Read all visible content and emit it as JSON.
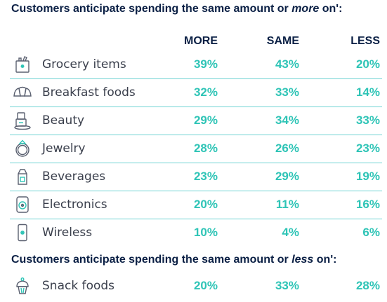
{
  "headings": {
    "more_prefix": "Customers anticipate spending the same amount or ",
    "more_emph": "more",
    "more_suffix": " on':",
    "less_prefix": "Customers anticipate spending the same amount or ",
    "less_emph": "less",
    "less_suffix": " on':"
  },
  "colors": {
    "value": "#2ec4b6",
    "divider": "#6fd3d3",
    "heading": "#0a1f44"
  },
  "chart_data": {
    "type": "table",
    "columns": [
      "MORE",
      "SAME",
      "LESS"
    ],
    "rows": [
      {
        "label": "Grocery items",
        "icon": "grocery-bag-icon",
        "more": "39%",
        "same": "43%",
        "less": "20%"
      },
      {
        "label": "Breakfast foods",
        "icon": "croissant-icon",
        "more": "32%",
        "same": "33%",
        "less": "14%"
      },
      {
        "label": "Beauty",
        "icon": "cosmetics-icon",
        "more": "29%",
        "same": "34%",
        "less": "33%"
      },
      {
        "label": "Jewelry",
        "icon": "ring-icon",
        "more": "28%",
        "same": "26%",
        "less": "23%"
      },
      {
        "label": "Beverages",
        "icon": "milk-carton-icon",
        "more": "23%",
        "same": "29%",
        "less": "19%"
      },
      {
        "label": "Electronics",
        "icon": "speaker-icon",
        "more": "20%",
        "same": "11%",
        "less": "16%"
      },
      {
        "label": "Wireless",
        "icon": "phone-icon",
        "more": "10%",
        "same": "4%",
        "less": "6%"
      }
    ],
    "less_rows": [
      {
        "label": "Snack foods",
        "icon": "cupcake-icon",
        "more": "20%",
        "same": "33%",
        "less": "28%"
      }
    ]
  }
}
